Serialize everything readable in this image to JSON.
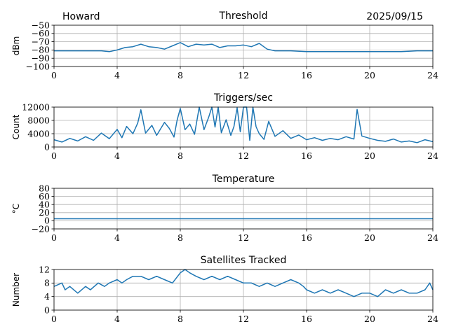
{
  "header": {
    "station": "Howard",
    "date": "2025/09/15"
  },
  "colors": {
    "series": "#1f77b4",
    "grid": "#b0b0b0",
    "axes": "#000000"
  },
  "chart_data": [
    {
      "type": "line",
      "title": "Threshold",
      "xlabel": "",
      "ylabel": "dBm",
      "xlim": [
        0,
        24
      ],
      "ylim": [
        -100,
        -50
      ],
      "xticks": [
        0,
        4,
        8,
        12,
        16,
        20,
        24
      ],
      "xtick_labels": [
        "0",
        "4",
        "8",
        "12",
        "16",
        "20",
        "24"
      ],
      "yticks": [
        -50,
        -60,
        -70,
        -80,
        -90,
        -100
      ],
      "ytick_labels": [
        "−50",
        "−60",
        "−70",
        "−80",
        "−90",
        "−100"
      ],
      "grid": true,
      "series": [
        {
          "name": "threshold",
          "x": [
            0,
            1,
            2,
            3,
            3.5,
            4,
            4.5,
            5,
            5.5,
            6,
            6.5,
            7,
            7.5,
            8,
            8.5,
            9,
            9.5,
            10,
            10.5,
            11,
            11.5,
            12,
            12.5,
            13,
            13.5,
            14,
            15,
            16,
            17,
            18,
            19,
            20,
            21,
            22,
            23,
            24
          ],
          "y": [
            -81,
            -81,
            -81,
            -81,
            -82,
            -80,
            -77,
            -76,
            -73,
            -76,
            -77,
            -79,
            -75,
            -71,
            -76,
            -73,
            -74,
            -73,
            -77,
            -75,
            -75,
            -74,
            -76,
            -72,
            -79,
            -81,
            -81,
            -82,
            -82,
            -82,
            -82,
            -82,
            -82,
            -82,
            -81,
            -81
          ]
        }
      ]
    },
    {
      "type": "line",
      "title": "Triggers/sec",
      "xlabel": "",
      "ylabel": "Count",
      "xlim": [
        0,
        24
      ],
      "ylim": [
        0,
        12000
      ],
      "xticks": [
        0,
        4,
        8,
        12,
        16,
        20,
        24
      ],
      "xtick_labels": [
        "0",
        "4",
        "8",
        "12",
        "16",
        "20",
        "24"
      ],
      "yticks": [
        0,
        4000,
        8000,
        12000
      ],
      "ytick_labels": [
        "0",
        "4000",
        "8000",
        "12000"
      ],
      "grid": true,
      "series": [
        {
          "name": "triggers",
          "x": [
            0,
            0.5,
            1,
            1.5,
            2,
            2.5,
            3,
            3.5,
            4,
            4.3,
            4.6,
            5,
            5.3,
            5.5,
            5.8,
            6.2,
            6.5,
            7,
            7.3,
            7.6,
            7.8,
            8,
            8.3,
            8.6,
            8.9,
            9.2,
            9.5,
            9.8,
            10,
            10.2,
            10.4,
            10.6,
            10.9,
            11.2,
            11.4,
            11.6,
            11.8,
            12,
            12.2,
            12.4,
            12.6,
            12.8,
            13,
            13.3,
            13.6,
            14,
            14.5,
            15,
            15.5,
            16,
            16.5,
            17,
            17.5,
            18,
            18.5,
            19,
            19.2,
            19.5,
            20,
            20.5,
            21,
            21.5,
            22,
            22.5,
            23,
            23.5,
            24
          ],
          "y": [
            2200,
            1500,
            2600,
            1800,
            3100,
            2000,
            4200,
            2500,
            5300,
            2800,
            6200,
            4000,
            7200,
            11200,
            4200,
            6500,
            3500,
            7400,
            5600,
            3000,
            8100,
            11600,
            5200,
            6900,
            3800,
            12000,
            5200,
            9000,
            12000,
            6000,
            12000,
            4300,
            8200,
            3500,
            6200,
            11800,
            4600,
            12000,
            12000,
            2000,
            12000,
            6100,
            4000,
            2300,
            7700,
            3200,
            4900,
            2600,
            3600,
            2200,
            2800,
            2000,
            2600,
            2200,
            3100,
            2400,
            11300,
            3300,
            2600,
            2000,
            1700,
            2400,
            1500,
            1800,
            1300,
            2200,
            1600
          ]
        }
      ]
    },
    {
      "type": "line",
      "title": "Temperature",
      "xlabel": "",
      "ylabel": "°C",
      "xlim": [
        0,
        24
      ],
      "ylim": [
        -20,
        80
      ],
      "xticks": [
        0,
        4,
        8,
        12,
        16,
        20,
        24
      ],
      "xtick_labels": [
        "0",
        "4",
        "8",
        "12",
        "16",
        "20",
        "24"
      ],
      "yticks": [
        80,
        60,
        40,
        20,
        0,
        -20
      ],
      "ytick_labels": [
        "80",
        "60",
        "40",
        "20",
        "0",
        "−20"
      ],
      "grid": true,
      "series": [
        {
          "name": "temperature",
          "x": [
            0,
            24
          ],
          "y": [
            5,
            5
          ]
        }
      ]
    },
    {
      "type": "line",
      "title": "Satellites Tracked",
      "xlabel": "",
      "ylabel": "Number",
      "xlim": [
        0,
        24
      ],
      "ylim": [
        0,
        12
      ],
      "xticks": [
        0,
        4,
        8,
        12,
        16,
        20,
        24
      ],
      "xtick_labels": [
        "0",
        "4",
        "8",
        "12",
        "16",
        "20",
        "24"
      ],
      "yticks": [
        0,
        4,
        8,
        12
      ],
      "ytick_labels": [
        "0",
        "4",
        "8",
        "12"
      ],
      "grid": true,
      "series": [
        {
          "name": "satellites",
          "x": [
            0,
            0.5,
            0.7,
            1,
            1.5,
            2,
            2.3,
            2.8,
            3.2,
            3.5,
            4,
            4.3,
            4.6,
            5,
            5.5,
            6,
            6.5,
            7,
            7.5,
            8,
            8.3,
            8.6,
            9,
            9.5,
            10,
            10.5,
            11,
            11.5,
            12,
            12.5,
            13,
            13.5,
            14,
            14.5,
            15,
            15.5,
            15.8,
            16,
            16.5,
            17,
            17.5,
            18,
            18.5,
            19,
            19.5,
            20,
            20.5,
            21,
            21.5,
            22,
            22.5,
            23,
            23.5,
            23.8,
            24
          ],
          "y": [
            7,
            8,
            6,
            7,
            5,
            7,
            6,
            8,
            7,
            8,
            9,
            8,
            9,
            10,
            10,
            9,
            10,
            9,
            8,
            11,
            12,
            11,
            10,
            9,
            10,
            9,
            10,
            9,
            8,
            8,
            7,
            8,
            7,
            8,
            9,
            8,
            7,
            6,
            5,
            6,
            5,
            6,
            5,
            4,
            5,
            5,
            4,
            6,
            5,
            6,
            5,
            5,
            6,
            8,
            6
          ]
        }
      ]
    }
  ]
}
